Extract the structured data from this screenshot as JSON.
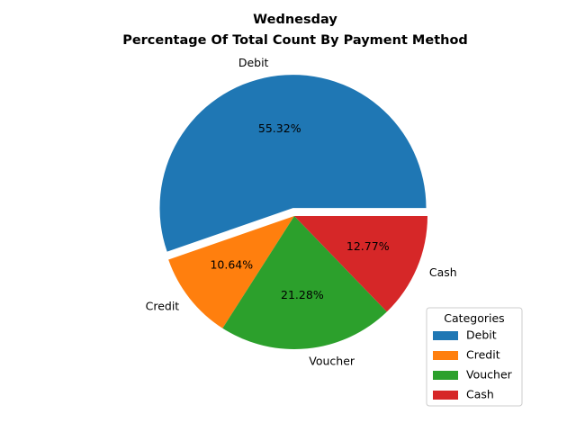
{
  "chart_data": {
    "type": "pie",
    "title": "Wednesday",
    "subtitle": "Percentage Of Total Count By Payment Method",
    "categories": [
      "Debit",
      "Credit",
      "Voucher",
      "Cash"
    ],
    "values": [
      55.32,
      10.64,
      21.28,
      12.77
    ],
    "value_labels": [
      "55.32%",
      "10.64%",
      "21.28%",
      "12.77%"
    ],
    "colors": [
      "#1f77b4",
      "#ff7f0e",
      "#2ca02c",
      "#d62728"
    ],
    "exploded": [
      "Debit"
    ],
    "legend": {
      "title": "Categories",
      "placement": "lower-right",
      "entries": [
        "Debit",
        "Credit",
        "Voucher",
        "Cash"
      ]
    }
  }
}
